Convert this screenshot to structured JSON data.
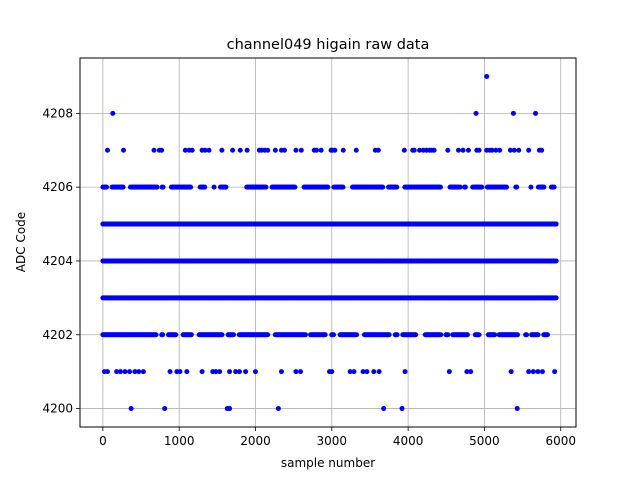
{
  "chart_data": {
    "type": "scatter",
    "title": "channel049 higain raw data",
    "xlabel": "sample number",
    "ylabel": "ADC Code",
    "xlim": [
      -300,
      6200
    ],
    "ylim": [
      4199.5,
      4209.5
    ],
    "xticks": [
      0,
      1000,
      2000,
      3000,
      4000,
      5000,
      6000
    ],
    "yticks": [
      4200,
      4202,
      4204,
      4206,
      4208
    ],
    "grid": true,
    "marker_color": "#0000ff",
    "x_extent": [
      0,
      5940
    ],
    "dense_levels": [
      4203,
      4204,
      4205
    ],
    "semi_dense_levels": [
      4202,
      4206
    ],
    "series": [
      {
        "points": [
          [
            60,
            4207
          ],
          [
            270,
            4207
          ],
          [
            670,
            4207
          ],
          [
            740,
            4207
          ],
          [
            770,
            4207
          ],
          [
            1080,
            4207
          ],
          [
            1130,
            4207
          ],
          [
            1170,
            4207
          ],
          [
            1300,
            4207
          ],
          [
            1340,
            4207
          ],
          [
            1390,
            4207
          ],
          [
            1560,
            4207
          ],
          [
            1700,
            4207
          ],
          [
            1800,
            4207
          ],
          [
            1890,
            4207
          ],
          [
            2050,
            4207
          ],
          [
            2080,
            4207
          ],
          [
            2120,
            4207
          ],
          [
            2160,
            4207
          ],
          [
            2260,
            4207
          ],
          [
            2340,
            4207
          ],
          [
            2380,
            4207
          ],
          [
            2530,
            4207
          ],
          [
            2600,
            4207
          ],
          [
            2770,
            4207
          ],
          [
            2800,
            4207
          ],
          [
            2860,
            4207
          ],
          [
            2990,
            4207
          ],
          [
            3010,
            4207
          ],
          [
            3040,
            4207
          ],
          [
            3150,
            4207
          ],
          [
            3320,
            4207
          ],
          [
            3570,
            4207
          ],
          [
            3610,
            4207
          ],
          [
            3950,
            4207
          ],
          [
            4060,
            4207
          ],
          [
            4080,
            4207
          ],
          [
            4150,
            4207
          ],
          [
            4200,
            4207
          ],
          [
            4240,
            4207
          ],
          [
            4280,
            4207
          ],
          [
            4310,
            4207
          ],
          [
            4340,
            4207
          ],
          [
            4520,
            4207
          ],
          [
            4660,
            4207
          ],
          [
            4720,
            4207
          ],
          [
            4790,
            4207
          ],
          [
            4900,
            4207
          ],
          [
            4930,
            4207
          ],
          [
            5030,
            4207
          ],
          [
            5070,
            4207
          ],
          [
            5100,
            4207
          ],
          [
            5150,
            4207
          ],
          [
            5200,
            4207
          ],
          [
            5340,
            4207
          ],
          [
            5390,
            4207
          ],
          [
            5450,
            4207
          ],
          [
            5580,
            4207
          ],
          [
            5720,
            4207
          ],
          [
            5750,
            4207
          ],
          [
            130,
            4208
          ],
          [
            4890,
            4208
          ],
          [
            5380,
            4208
          ],
          [
            5670,
            4208
          ],
          [
            5030,
            4209
          ],
          [
            20,
            4201
          ],
          [
            60,
            4201
          ],
          [
            180,
            4201
          ],
          [
            230,
            4201
          ],
          [
            290,
            4201
          ],
          [
            350,
            4201
          ],
          [
            420,
            4201
          ],
          [
            470,
            4201
          ],
          [
            530,
            4201
          ],
          [
            880,
            4201
          ],
          [
            970,
            4201
          ],
          [
            1010,
            4201
          ],
          [
            1100,
            4201
          ],
          [
            1300,
            4201
          ],
          [
            1440,
            4201
          ],
          [
            1480,
            4201
          ],
          [
            1530,
            4201
          ],
          [
            1660,
            4201
          ],
          [
            1740,
            4201
          ],
          [
            1790,
            4201
          ],
          [
            1870,
            4201
          ],
          [
            2000,
            4201
          ],
          [
            2340,
            4201
          ],
          [
            2530,
            4201
          ],
          [
            2590,
            4201
          ],
          [
            2970,
            4201
          ],
          [
            3000,
            4201
          ],
          [
            3240,
            4201
          ],
          [
            3290,
            4201
          ],
          [
            3410,
            4201
          ],
          [
            3460,
            4201
          ],
          [
            3550,
            4201
          ],
          [
            3620,
            4201
          ],
          [
            3960,
            4201
          ],
          [
            4540,
            4201
          ],
          [
            4770,
            4201
          ],
          [
            4820,
            4201
          ],
          [
            5350,
            4201
          ],
          [
            5580,
            4201
          ],
          [
            5640,
            4201
          ],
          [
            5700,
            4201
          ],
          [
            5760,
            4201
          ],
          [
            5920,
            4201
          ],
          [
            370,
            4200
          ],
          [
            810,
            4200
          ],
          [
            1630,
            4200
          ],
          [
            1660,
            4200
          ],
          [
            2300,
            4200
          ],
          [
            3680,
            4200
          ],
          [
            3920,
            4200
          ],
          [
            5430,
            4200
          ]
        ]
      }
    ]
  }
}
